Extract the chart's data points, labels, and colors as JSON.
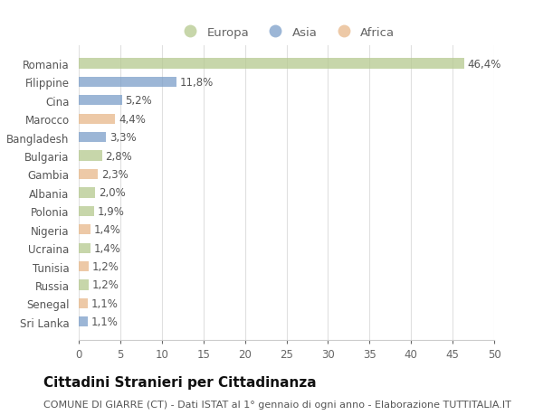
{
  "countries": [
    "Romania",
    "Filippine",
    "Cina",
    "Marocco",
    "Bangladesh",
    "Bulgaria",
    "Gambia",
    "Albania",
    "Polonia",
    "Nigeria",
    "Ucraina",
    "Tunisia",
    "Russia",
    "Senegal",
    "Sri Lanka"
  ],
  "values": [
    46.4,
    11.8,
    5.2,
    4.4,
    3.3,
    2.8,
    2.3,
    2.0,
    1.9,
    1.4,
    1.4,
    1.2,
    1.2,
    1.1,
    1.1
  ],
  "labels": [
    "46,4%",
    "11,8%",
    "5,2%",
    "4,4%",
    "3,3%",
    "2,8%",
    "2,3%",
    "2,0%",
    "1,9%",
    "1,4%",
    "1,4%",
    "1,2%",
    "1,2%",
    "1,1%",
    "1,1%"
  ],
  "continents": [
    "Europa",
    "Asia",
    "Asia",
    "Africa",
    "Asia",
    "Europa",
    "Africa",
    "Europa",
    "Europa",
    "Africa",
    "Europa",
    "Africa",
    "Europa",
    "Africa",
    "Asia"
  ],
  "colors": {
    "Europa": "#b5c98e",
    "Asia": "#7b9ec9",
    "Africa": "#e8b88a"
  },
  "xlim": [
    0,
    50
  ],
  "xticks": [
    0,
    5,
    10,
    15,
    20,
    25,
    30,
    35,
    40,
    45,
    50
  ],
  "title": "Cittadini Stranieri per Cittadinanza",
  "subtitle": "COMUNE DI GIARRE (CT) - Dati ISTAT al 1° gennaio di ogni anno - Elaborazione TUTTITALIA.IT",
  "background_color": "#ffffff",
  "plot_bg_color": "#ffffff",
  "grid_color": "#e0e0e0",
  "bar_height": 0.55,
  "label_fontsize": 8.5,
  "tick_fontsize": 8.5,
  "title_fontsize": 11,
  "subtitle_fontsize": 8
}
